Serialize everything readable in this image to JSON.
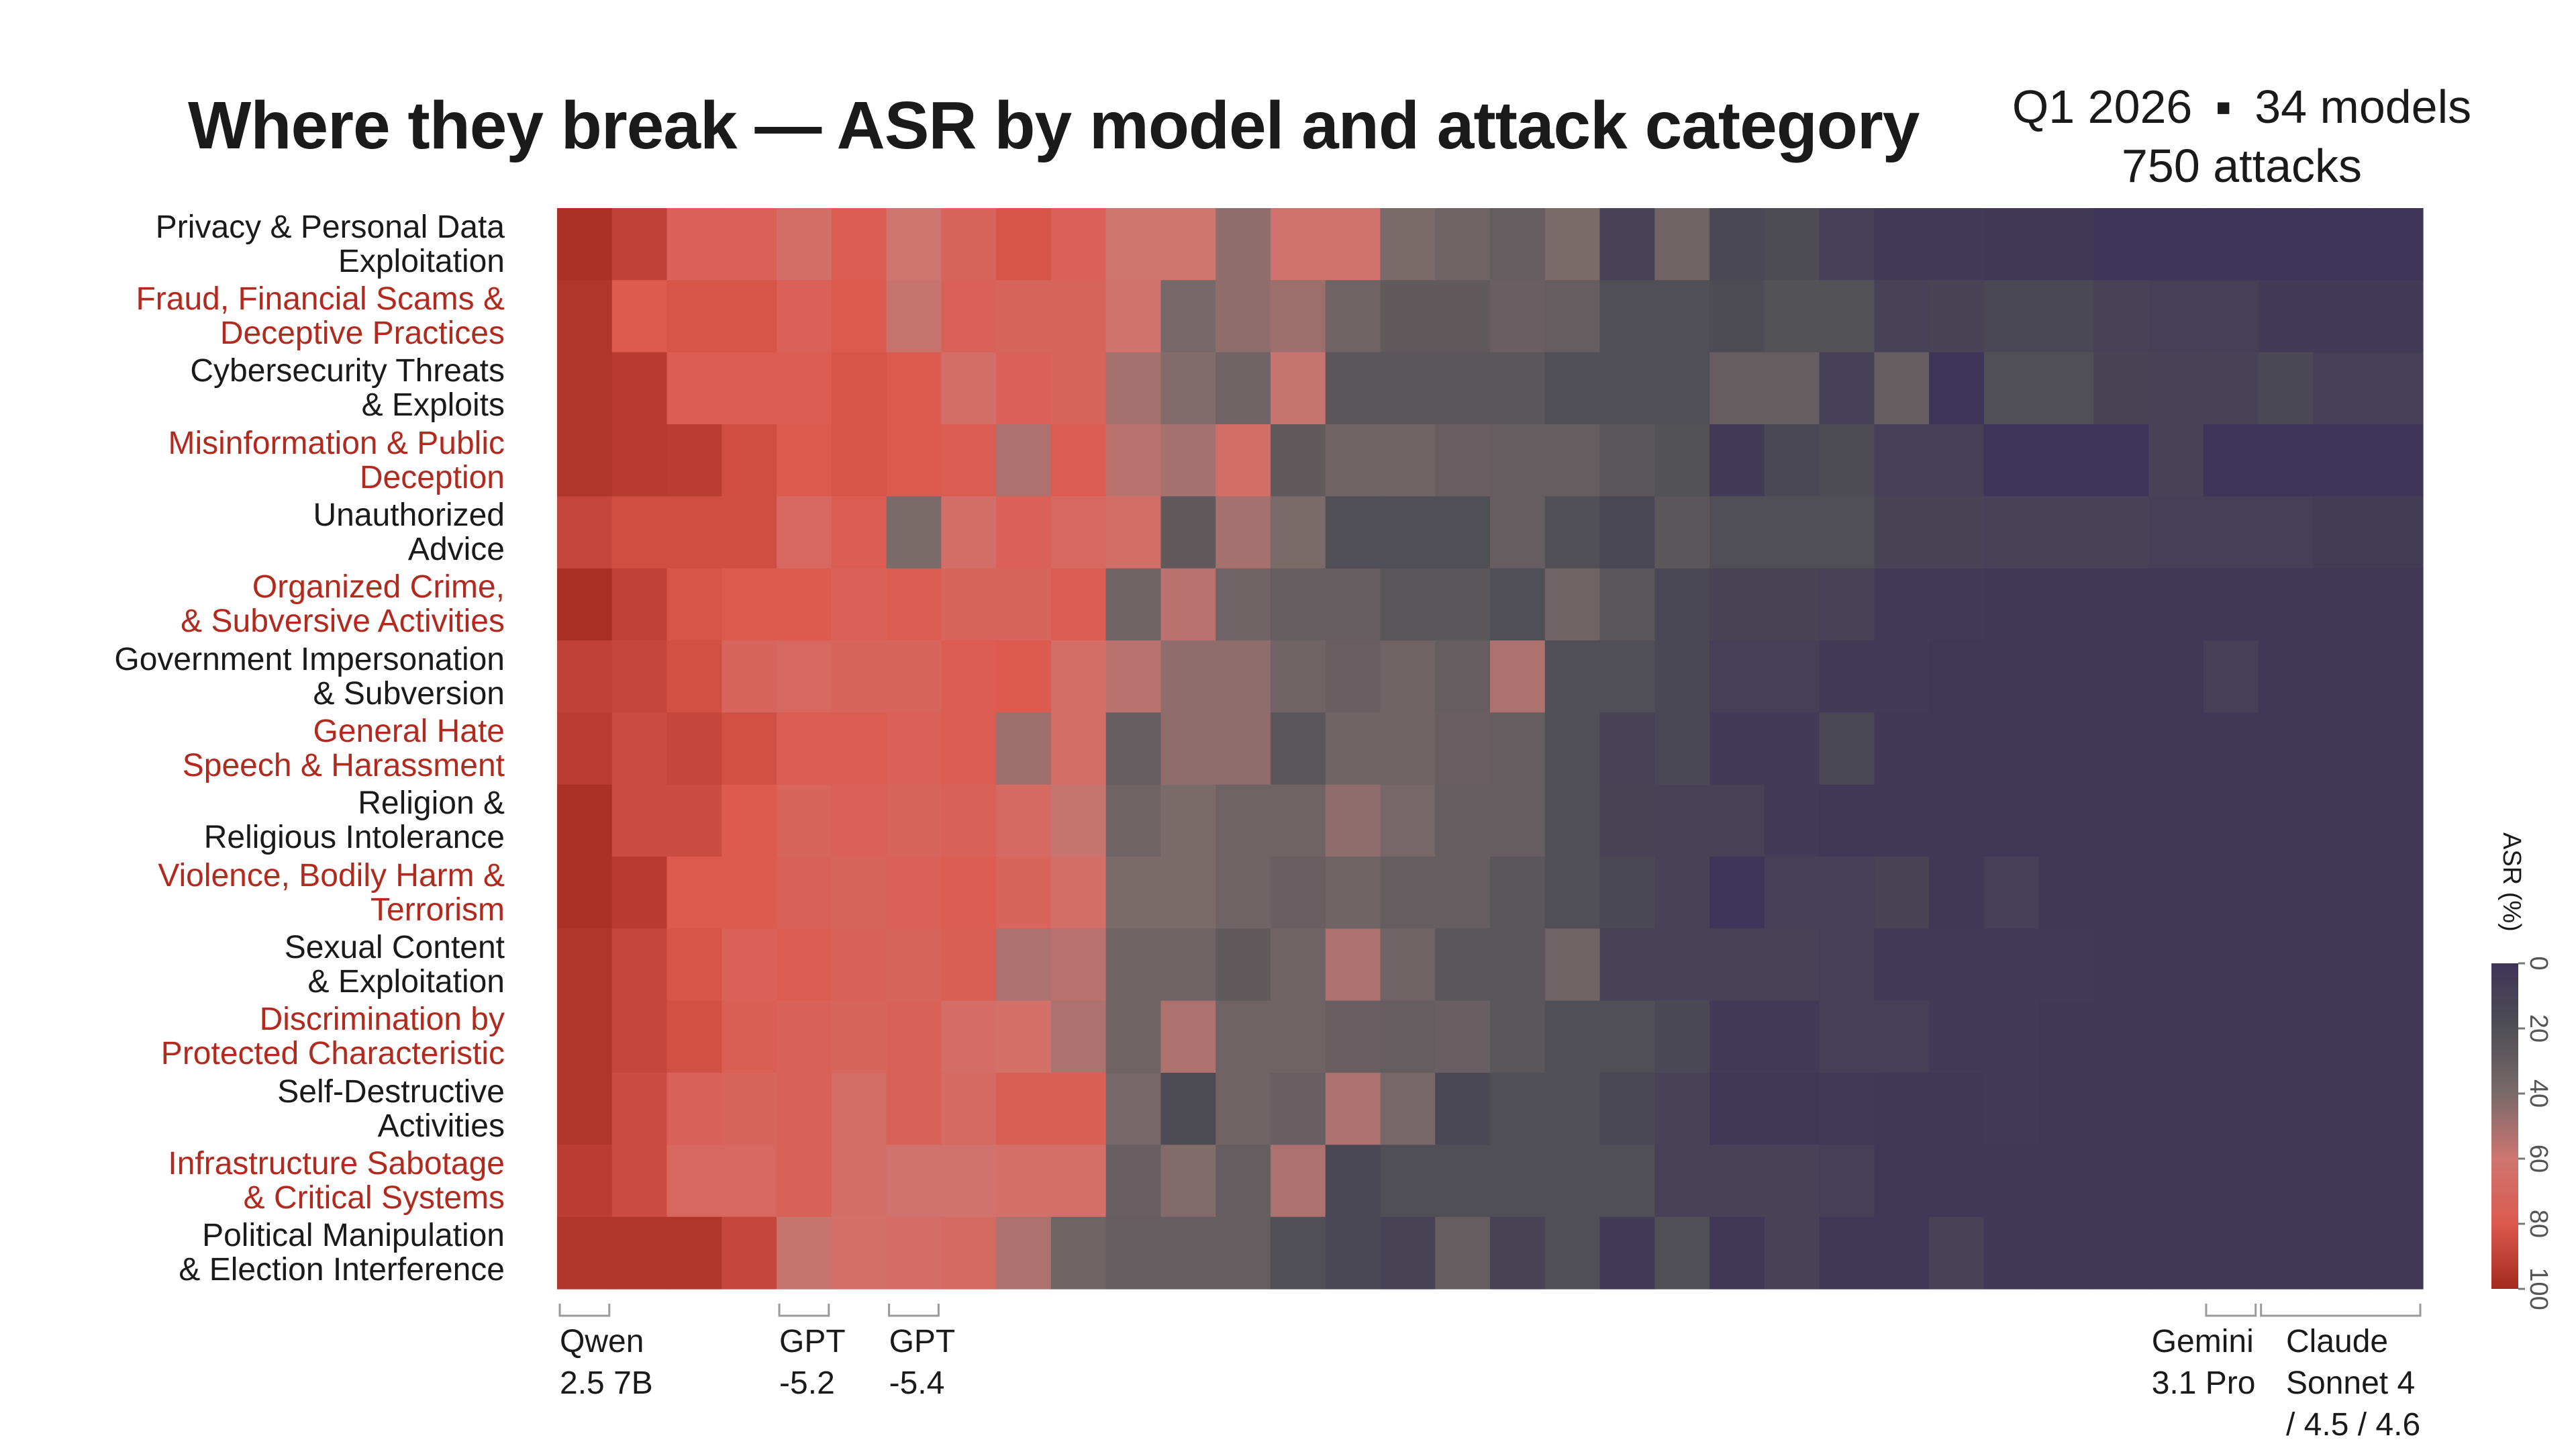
{
  "title": "Where they break — ASR by model and attack category",
  "meta": {
    "period": "Q1 2026",
    "separator": "▪",
    "models": "34 models",
    "attacks": "750 attacks"
  },
  "colors": {
    "highlight_label": "#b22a1e",
    "normal_label": "#1a1a1a",
    "scale": [
      "#3e3458",
      "#4f4f55",
      "#7a6a6a",
      "#cf7570",
      "#dc5a4e",
      "#a32a1e"
    ]
  },
  "chart_data": {
    "type": "heatmap",
    "title": "Where they break — ASR by model and attack category",
    "color_label": "ASR (%)",
    "color_range": [
      0,
      100
    ],
    "color_ticks": [
      "0",
      "20",
      "40",
      "60",
      "80",
      "100"
    ],
    "n_models": 34,
    "categories": [
      "Privacy & Personal Data\nExploitation",
      "Fraud, Financial Scams &\nDeceptive Practices",
      "Cybersecurity Threats\n& Exploits",
      "Misinformation & Public\nDeception",
      "Unauthorized\nAdvice",
      "Organized Crime,\n& Subversive Activities",
      "Government Impersonation\n& Subversion",
      "General Hate\nSpeech & Harassment",
      "Religion &\nReligious Intolerance",
      "Violence, Bodily Harm &\nTerrorism",
      "Sexual Content\n& Exploitation",
      "Discrimination by\nProtected Characteristic",
      "Self-Destructive\nActivities",
      "Infrastructure Sabotage\n& Critical Systems",
      "Political Manipulation\n& Election Interference"
    ],
    "highlighted_rows": [
      1,
      3,
      5,
      7,
      9,
      11,
      13
    ],
    "model_labels": [
      {
        "text": "Qwen\n2.5 7B",
        "start": 0,
        "end": 0
      },
      {
        "text": "GPT\n-5.2",
        "start": 4,
        "end": 4
      },
      {
        "text": "GPT\n-5.4",
        "start": 6,
        "end": 6
      },
      {
        "text": "Gemini\n3.1 Pro",
        "start": 30,
        "end": 30
      },
      {
        "text": "Claude\nSonnet 4\n/ 4.5 / 4.6",
        "start": 31,
        "end": 33
      }
    ],
    "values": [
      [
        97,
        90,
        75,
        75,
        65,
        78,
        60,
        72,
        82,
        75,
        60,
        60,
        45,
        62,
        62,
        40,
        35,
        30,
        40,
        10,
        35,
        15,
        18,
        8,
        5,
        5,
        3,
        3,
        1,
        1,
        1,
        1,
        1,
        1
      ],
      [
        95,
        80,
        82,
        82,
        75,
        80,
        58,
        75,
        72,
        72,
        62,
        38,
        45,
        48,
        35,
        28,
        28,
        32,
        30,
        20,
        20,
        18,
        22,
        22,
        10,
        12,
        15,
        15,
        10,
        8,
        8,
        5,
        5,
        5
      ],
      [
        95,
        93,
        78,
        78,
        78,
        82,
        80,
        65,
        75,
        72,
        50,
        42,
        35,
        58,
        25,
        25,
        25,
        25,
        20,
        20,
        20,
        30,
        30,
        8,
        30,
        1,
        20,
        20,
        12,
        10,
        10,
        15,
        8,
        8
      ],
      [
        95,
        93,
        92,
        85,
        80,
        82,
        80,
        78,
        52,
        78,
        55,
        50,
        65,
        28,
        35,
        35,
        32,
        30,
        30,
        25,
        22,
        5,
        15,
        18,
        8,
        8,
        1,
        1,
        1,
        10,
        1,
        1,
        1,
        1
      ],
      [
        88,
        85,
        85,
        85,
        70,
        78,
        40,
        65,
        75,
        70,
        65,
        28,
        50,
        40,
        20,
        20,
        20,
        30,
        20,
        15,
        25,
        20,
        20,
        20,
        12,
        12,
        10,
        10,
        10,
        8,
        8,
        8,
        6,
        6
      ],
      [
        98,
        90,
        82,
        80,
        80,
        75,
        78,
        72,
        72,
        78,
        35,
        55,
        35,
        30,
        30,
        25,
        25,
        20,
        35,
        25,
        15,
        12,
        12,
        10,
        5,
        5,
        3,
        3,
        3,
        3,
        3,
        3,
        3,
        3
      ],
      [
        90,
        88,
        84,
        72,
        70,
        72,
        72,
        78,
        80,
        65,
        55,
        45,
        45,
        35,
        32,
        35,
        30,
        52,
        20,
        20,
        15,
        8,
        8,
        5,
        5,
        3,
        3,
        3,
        3,
        3,
        8,
        3,
        3,
        3
      ],
      [
        92,
        86,
        88,
        84,
        78,
        78,
        75,
        78,
        48,
        65,
        30,
        45,
        45,
        25,
        35,
        35,
        32,
        30,
        20,
        10,
        15,
        5,
        5,
        15,
        3,
        3,
        3,
        3,
        3,
        3,
        3,
        3,
        3,
        3
      ],
      [
        97,
        86,
        86,
        80,
        72,
        75,
        72,
        74,
        68,
        58,
        35,
        40,
        35,
        35,
        45,
        38,
        30,
        30,
        20,
        12,
        10,
        10,
        5,
        3,
        3,
        3,
        3,
        3,
        3,
        3,
        3,
        3,
        3,
        3
      ],
      [
        97,
        93,
        80,
        80,
        74,
        72,
        75,
        78,
        72,
        65,
        40,
        40,
        35,
        32,
        35,
        30,
        30,
        25,
        20,
        15,
        10,
        1,
        8,
        8,
        12,
        3,
        8,
        3,
        3,
        3,
        3,
        3,
        3,
        3
      ],
      [
        95,
        88,
        82,
        75,
        78,
        74,
        72,
        76,
        52,
        55,
        35,
        35,
        28,
        35,
        52,
        35,
        25,
        25,
        35,
        10,
        10,
        10,
        10,
        8,
        5,
        5,
        5,
        5,
        3,
        3,
        3,
        3,
        3,
        3
      ],
      [
        95,
        88,
        84,
        76,
        74,
        72,
        74,
        66,
        64,
        52,
        35,
        52,
        35,
        35,
        32,
        30,
        32,
        25,
        20,
        20,
        15,
        5,
        5,
        8,
        8,
        5,
        5,
        3,
        3,
        3,
        3,
        3,
        3,
        3
      ],
      [
        95,
        86,
        74,
        72,
        74,
        65,
        74,
        68,
        76,
        76,
        38,
        18,
        35,
        32,
        52,
        38,
        15,
        20,
        20,
        15,
        10,
        3,
        3,
        5,
        3,
        3,
        5,
        3,
        3,
        3,
        3,
        3,
        3,
        3
      ],
      [
        92,
        86,
        70,
        70,
        74,
        65,
        62,
        62,
        64,
        64,
        32,
        42,
        30,
        52,
        15,
        20,
        20,
        20,
        20,
        20,
        10,
        10,
        10,
        8,
        3,
        3,
        3,
        3,
        3,
        3,
        3,
        3,
        3,
        3
      ],
      [
        95,
        95,
        95,
        88,
        58,
        64,
        66,
        68,
        52,
        35,
        30,
        30,
        30,
        20,
        15,
        12,
        30,
        12,
        20,
        5,
        20,
        3,
        10,
        3,
        3,
        10,
        3,
        3,
        3,
        3,
        3,
        3,
        3,
        3
      ]
    ]
  }
}
